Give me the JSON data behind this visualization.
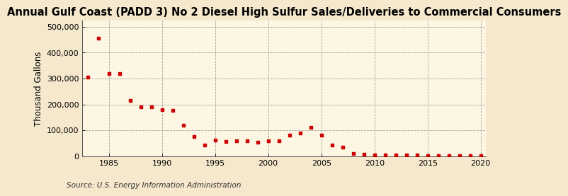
{
  "title": "Annual Gulf Coast (PADD 3) No 2 Diesel High Sulfur Sales/Deliveries to Commercial Consumers",
  "ylabel": "Thousand Gallons",
  "source": "Source: U.S. Energy Information Administration",
  "background_color": "#f5e8cc",
  "plot_background_color": "#fdf6e3",
  "marker_color": "#cc0000",
  "years": [
    1983,
    1984,
    1985,
    1986,
    1987,
    1988,
    1989,
    1990,
    1991,
    1992,
    1993,
    1994,
    1995,
    1996,
    1997,
    1998,
    1999,
    2000,
    2001,
    2002,
    2003,
    2004,
    2005,
    2006,
    2007,
    2008,
    2009,
    2010,
    2011,
    2012,
    2013,
    2014,
    2015,
    2016,
    2017,
    2018,
    2019,
    2020
  ],
  "values": [
    305000,
    457000,
    320000,
    320000,
    215000,
    190000,
    190000,
    180000,
    178000,
    120000,
    75000,
    44000,
    63000,
    57000,
    60000,
    60000,
    53000,
    58000,
    58000,
    80000,
    88000,
    110000,
    80000,
    43000,
    35000,
    10000,
    7000,
    5000,
    5000,
    4000,
    4000,
    3500,
    3000,
    2500,
    2000,
    2000,
    1500,
    1000
  ],
  "xlim": [
    1982.5,
    2020.5
  ],
  "ylim": [
    0,
    525000
  ],
  "yticks": [
    0,
    100000,
    200000,
    300000,
    400000,
    500000
  ],
  "ytick_labels": [
    "0",
    "100,000",
    "200,000",
    "300,000",
    "400,000",
    "500,000"
  ],
  "xticks": [
    1985,
    1990,
    1995,
    2000,
    2005,
    2010,
    2015,
    2020
  ],
  "title_fontsize": 10.5,
  "label_fontsize": 8.5,
  "tick_fontsize": 8,
  "source_fontsize": 7.5
}
